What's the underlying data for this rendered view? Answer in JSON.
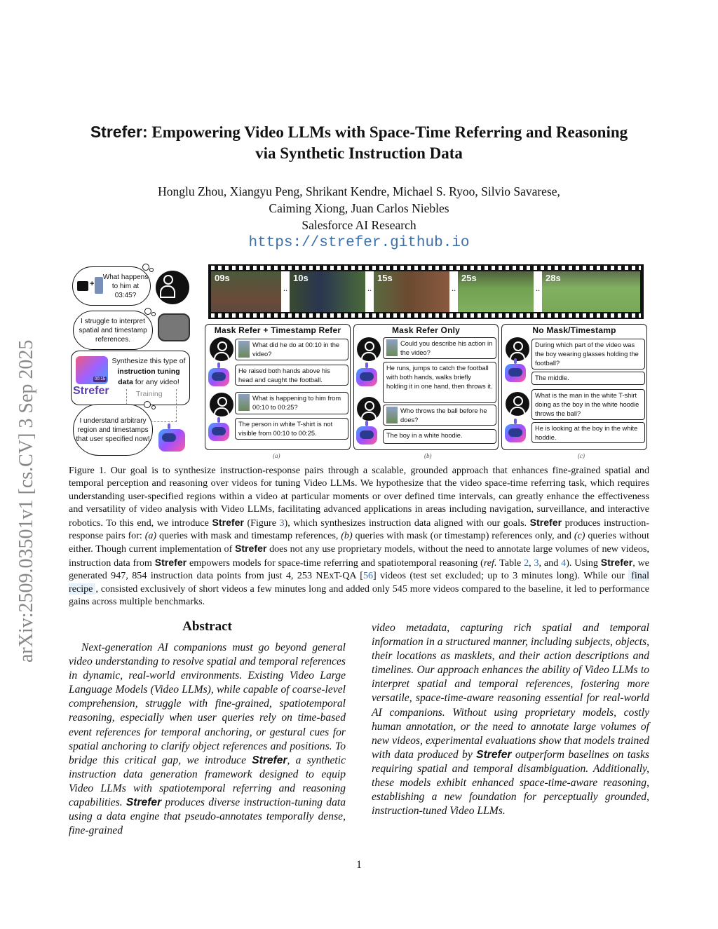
{
  "arxiv_id": "arXiv:2509.03501v1  [cs.CV]  3 Sep 2025",
  "title": {
    "brand": "Strefer:",
    "line1": " Empowering Video LLMs with Space-Time Referring and Reasoning",
    "line2": "via Synthetic Instruction Data"
  },
  "authors": {
    "line1": "Honglu Zhou, Xiangyu Peng, Shrikant Kendre, Michael S. Ryoo, Silvio Savarese,",
    "line2": "Caiming Xiong, Juan Carlos Niebles",
    "affiliation": "Salesforce AI Research",
    "url": "https://strefer.github.io"
  },
  "figure": {
    "left": {
      "q1": "What happens to him at 03:45?",
      "q2": "I struggle to interpret spatial and timestamp references.",
      "synth_pre": "Synthesize this type of ",
      "synth_bold": "instruction tuning data",
      "synth_post": " for any video!",
      "brand": "Strefer",
      "training": "Training",
      "q3": "I understand arbitrary region and timestamps that user specified now!",
      "timestamp_badge": "00:15"
    },
    "frames": [
      "09s",
      "10s",
      "15s",
      "25s",
      "28s"
    ],
    "ellipsis": "..",
    "panels": [
      {
        "title": "Mask Refer + Timestamp Refer",
        "label": "(a)",
        "turns": [
          "What did he do at 00:10 in the video?",
          "He raised both hands above his head and caught the football.",
          "What is happening to him from 00:10 to 00:25?",
          "The person in white T-shirt is not visible from 00:10 to 00:25."
        ]
      },
      {
        "title": "Mask Refer Only",
        "label": "(b)",
        "turns": [
          "Could you describe his action in the video?",
          "He runs, jumps to catch the football with both hands, walks briefly holding it in one hand, then throws it.",
          "Who throws the ball before he does?",
          "The boy in a white hoodie."
        ]
      },
      {
        "title": "No Mask/Timestamp",
        "label": "(c)",
        "turns": [
          "During which part of the video was the boy wearing glasses holding the football?",
          "The middle.",
          "What is the man in the white T-shirt doing as the boy in the white hoodie throws the ball?",
          "He is looking at the boy in the white hoddie."
        ]
      }
    ]
  },
  "caption": [
    {
      "t": "Figure 1. Our goal is to synthesize instruction-response pairs through a scalable, grounded approach that enhances fine-grained spatial and temporal perception and reasoning over videos for tuning Video LLMs. We hypothesize that the video space-time referring task, which requires understanding user-specified regions within a video at particular moments or over defined time intervals, can greatly enhance the effectiveness and versatility of video analysis with Video LLMs, facilitating advanced applications in areas including navigation, surveillance, and interactive robotics. To this end, we introduce "
    },
    {
      "t": "Strefer",
      "s": "b"
    },
    {
      "t": " (Figure "
    },
    {
      "t": "3",
      "s": "lnk"
    },
    {
      "t": "), which synthesizes instruction data aligned with our goals. "
    },
    {
      "t": "Strefer",
      "s": "b"
    },
    {
      "t": " produces instruction-response pairs for: "
    },
    {
      "t": "(a)",
      "s": "i"
    },
    {
      "t": " queries with mask and timestamp references, "
    },
    {
      "t": "(b)",
      "s": "i"
    },
    {
      "t": " queries with mask (or timestamp) references only, and "
    },
    {
      "t": "(c)",
      "s": "i"
    },
    {
      "t": " queries without either. Though current implementation of "
    },
    {
      "t": "Strefer",
      "s": "b"
    },
    {
      "t": " does not any use proprietary models, without the need to annotate large volumes of new videos, instruction data from "
    },
    {
      "t": "Strefer",
      "s": "b"
    },
    {
      "t": " empowers models for space-time referring and spatiotemporal reasoning ("
    },
    {
      "t": "ref.",
      "s": "i"
    },
    {
      "t": " Table "
    },
    {
      "t": "2",
      "s": "lnk"
    },
    {
      "t": ",  "
    },
    {
      "t": "3",
      "s": "lnk"
    },
    {
      "t": ", and "
    },
    {
      "t": "4",
      "s": "lnk"
    },
    {
      "t": ").  Using "
    },
    {
      "t": "Strefer",
      "s": "b"
    },
    {
      "t": ", we generated 947, 854 instruction data points from just 4, 253 NExT-QA ["
    },
    {
      "t": "56",
      "s": "lnk"
    },
    {
      "t": "] videos (test set excluded; up to 3 minutes long). While our "
    },
    {
      "t": "final recipe",
      "s": "hl"
    },
    {
      "t": ", consisted exclusively of short videos a few minutes long and added only 545 more videos compared to the baseline, it led to performance gains across multiple benchmarks."
    }
  ],
  "abstract": {
    "heading": "Abstract",
    "left": [
      {
        "t": "Next-generation AI companions must go beyond general video understanding to resolve spatial and temporal references in dynamic, real-world environments.  Existing Video Large Language Models (Video LLMs), while capable of coarse-level comprehension, struggle with fine-grained, spatiotemporal reasoning, especially when user queries rely on time-based event references for temporal anchoring, or gestural cues for spatial anchoring to clarify object references and positions. To bridge this critical gap, we introduce "
      },
      {
        "t": "Strefer",
        "s": "b"
      },
      {
        "t": ", a synthetic instruction data generation framework designed to equip Video LLMs with spatiotemporal referring and reasoning capabilities.  "
      },
      {
        "t": "Strefer",
        "s": "b"
      },
      {
        "t": " produces diverse instruction-tuning data using a data engine that pseudo-annotates temporally dense, fine-grained"
      }
    ],
    "right": [
      {
        "t": "video metadata, capturing rich spatial and temporal information in a structured manner, including subjects, objects, their locations as masklets, and their action descriptions and timelines. Our approach enhances the ability of Video LLMs to interpret spatial and temporal references, fostering more versatile, space-time-aware reasoning essential for real-world AI companions. Without using proprietary models, costly human annotation, or the need to annotate large volumes of new videos, experimental evaluations show that models trained with data produced by "
      },
      {
        "t": "Strefer",
        "s": "b"
      },
      {
        "t": " outperform baselines on tasks requiring spatial and temporal disambiguation.   Additionally, these models exhibit enhanced space-time-aware reasoning, establishing a new foundation for perceptually grounded, instruction-tuned Video LLMs."
      }
    ]
  },
  "page_number": "1",
  "colors": {
    "link": "#3d6fa8",
    "highlight": "#e6f1fb",
    "brand_purple": "#5a3fb0"
  }
}
